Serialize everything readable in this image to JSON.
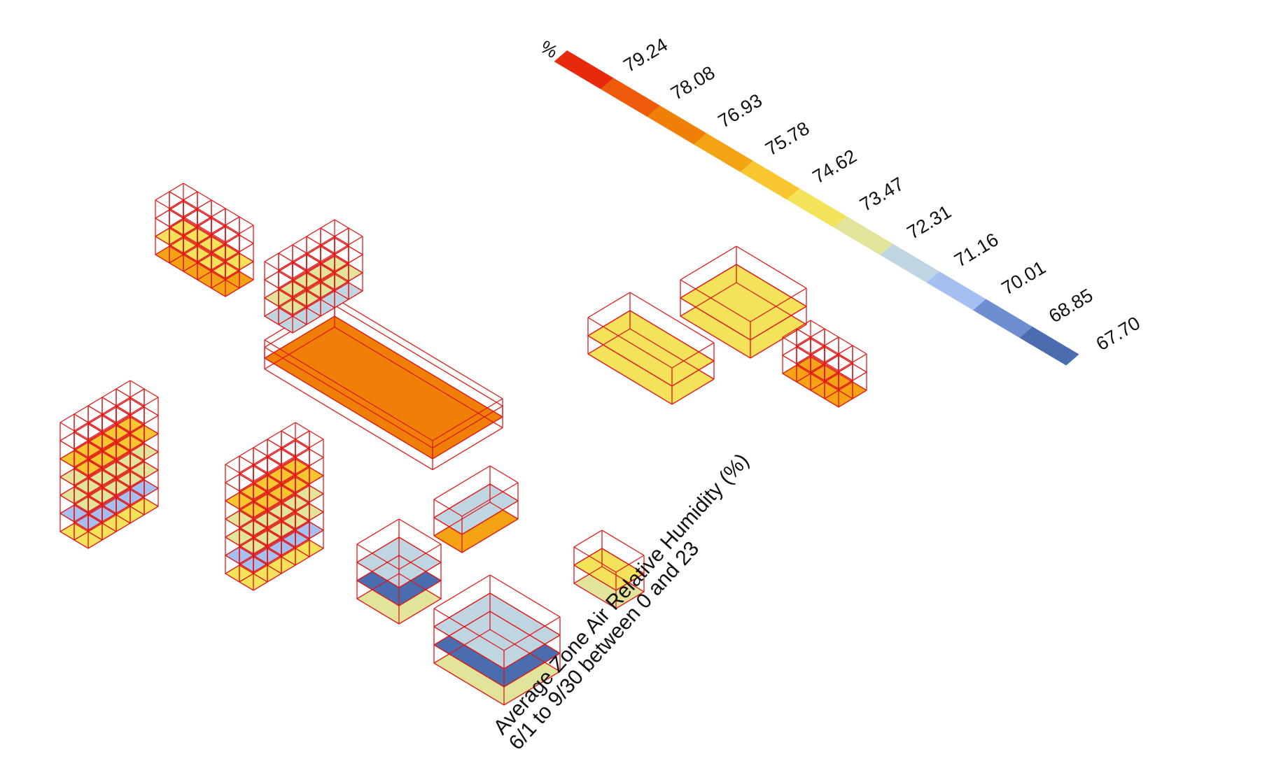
{
  "legend": {
    "unit": "%",
    "values": [
      "79.24",
      "78.08",
      "76.93",
      "75.78",
      "74.62",
      "73.47",
      "72.31",
      "71.16",
      "70.01",
      "68.85",
      "67.70"
    ],
    "colors": [
      "#e8290b",
      "#ec5a0a",
      "#ef7f07",
      "#f3a313",
      "#f8c62e",
      "#f4e35a",
      "#e2e49c",
      "#bfd6e2",
      "#a4bff0",
      "#6d8ed0",
      "#4a6db0"
    ]
  },
  "caption": {
    "line1": "Average Zone Air Relative Humidity (%)",
    "line2": "6/1 to 9/30 between 0 and 23"
  }
}
